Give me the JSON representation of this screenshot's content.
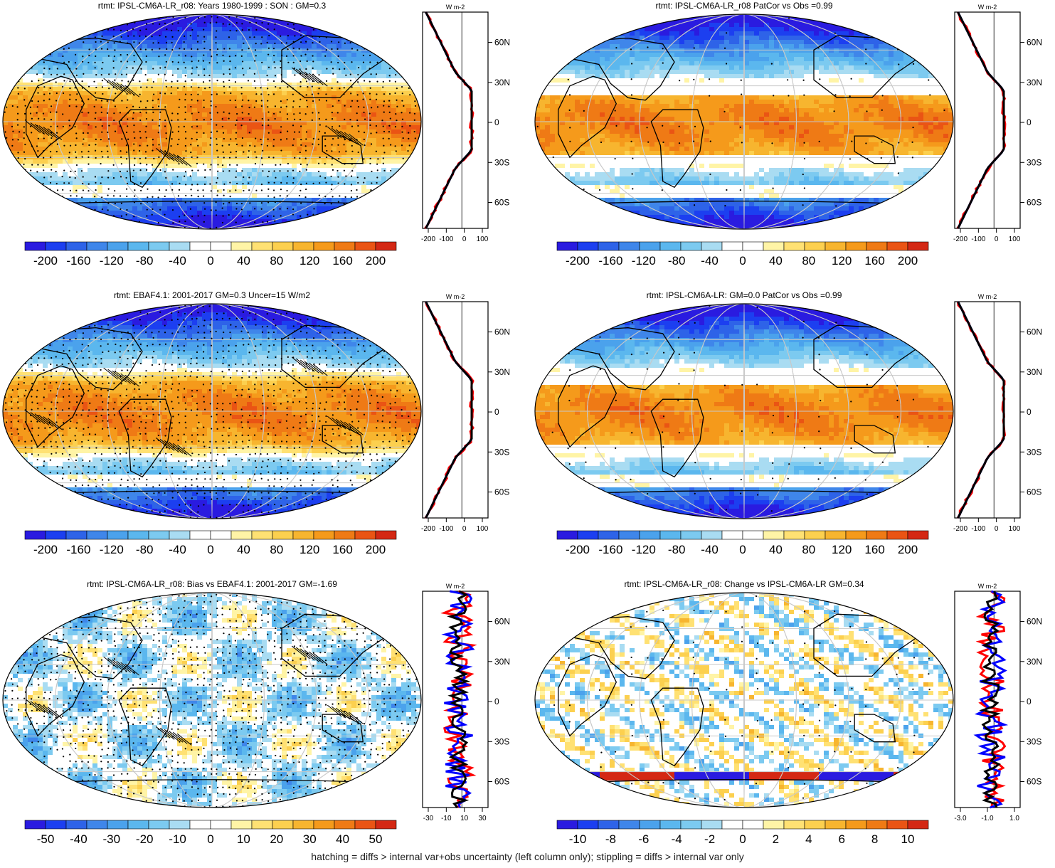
{
  "colors": {
    "neg": [
      "#2a1be0",
      "#1c3ff0",
      "#2e63e8",
      "#3f86ea",
      "#4ba2ec",
      "#5bb7ee",
      "#7ccaf0",
      "#a9dcf2"
    ],
    "zero": "#ffffff",
    "pos": [
      "#fff4a6",
      "#ffe173",
      "#fcd04f",
      "#f7b52f",
      "#f59a1b",
      "#ef7a15",
      "#ea5414",
      "#d42814"
    ],
    "continent": "#000000",
    "grid": "#c8c8c8",
    "profile_obs": "#0000ff",
    "profile_model": "#ff0000",
    "profile_mean": "#000000"
  },
  "panels": [
    {
      "id": "model-mean",
      "title": "rtmt: IPSL-CM6A-LR_r08: Years 1980-1999 : SON : GM=0.3",
      "colorbar_labels": [
        "-200",
        "-160",
        "-120",
        "-80",
        "-40",
        "0",
        "40",
        "80",
        "120",
        "160",
        "200"
      ],
      "profile_xticks": [
        "-200",
        "-100",
        "0",
        "100"
      ],
      "profile_yticks": [
        "60N",
        "30N",
        "0",
        "30S",
        "60S"
      ],
      "unit": "W m-2",
      "field": "mean",
      "stipple": "heavy",
      "hatch": true
    },
    {
      "id": "model-patcor",
      "title": "rtmt: IPSL-CM6A-LR_r08 PatCor vs Obs =0.99",
      "colorbar_labels": [
        "-200",
        "-160",
        "-120",
        "-80",
        "-40",
        "0",
        "40",
        "80",
        "120",
        "160",
        "200"
      ],
      "profile_xticks": [
        "-200",
        "-100",
        "0",
        "100"
      ],
      "profile_yticks": [
        "60N",
        "30N",
        "0",
        "30S",
        "60S"
      ],
      "unit": "W m-2",
      "field": "mean2",
      "stipple": "light",
      "hatch": false
    },
    {
      "id": "obs-mean",
      "title": "rtmt: EBAF4.1: 2001-2017 GM=0.3 Uncer=15 W/m2",
      "colorbar_labels": [
        "-200",
        "-160",
        "-120",
        "-80",
        "-40",
        "0",
        "40",
        "80",
        "120",
        "160",
        "200"
      ],
      "profile_xticks": [
        "-200",
        "-100",
        "0",
        "100"
      ],
      "profile_yticks": [
        "60N",
        "30N",
        "0",
        "30S",
        "60S"
      ],
      "unit": "W m-2",
      "field": "mean",
      "stipple": "heavy",
      "hatch": true
    },
    {
      "id": "ensemble-mean",
      "title": "rtmt: IPSL-CM6A-LR: GM=0.0 PatCor vs Obs =0.99",
      "colorbar_labels": [
        "-200",
        "-160",
        "-120",
        "-80",
        "-40",
        "0",
        "40",
        "80",
        "120",
        "160",
        "200"
      ],
      "profile_xticks": [
        "-200",
        "-100",
        "0",
        "100"
      ],
      "profile_yticks": [
        "60N",
        "30N",
        "0",
        "30S",
        "60S"
      ],
      "unit": "W m-2",
      "field": "mean2",
      "stipple": "light",
      "hatch": false
    },
    {
      "id": "bias",
      "title": "rtmt: IPSL-CM6A-LR_r08: Bias vs EBAF4.1: 2001-2017  GM=-1.69",
      "colorbar_labels": [
        "-50",
        "-40",
        "-30",
        "-20",
        "-10",
        "0",
        "10",
        "20",
        "30",
        "40",
        "50"
      ],
      "profile_xticks": [
        "-30",
        "-10",
        "10",
        "30"
      ],
      "profile_yticks": [
        "60N",
        "30N",
        "0",
        "30S",
        "60S"
      ],
      "unit": "W m-2",
      "field": "bias",
      "stipple": "heavy",
      "hatch": true
    },
    {
      "id": "change",
      "title": "rtmt: IPSL-CM6A-LR_r08: Change vs IPSL-CM6A-LR GM=0.34",
      "colorbar_labels": [
        "-10",
        "-8",
        "-6",
        "-4",
        "-2",
        "0",
        "2",
        "4",
        "6",
        "8",
        "10"
      ],
      "profile_xticks": [
        "-3.0",
        "-1.0",
        "1.0"
      ],
      "profile_yticks": [
        "60N",
        "30N",
        "0",
        "30S",
        "60S"
      ],
      "unit": "W m-2",
      "field": "change",
      "stipple": "light",
      "hatch": false
    }
  ],
  "chart_data": [
    {
      "type": "heatmap",
      "title": "rtmt: IPSL-CM6A-LR_r08: Years 1980-1999 : SON : GM=0.3",
      "colorbar_ticks": [
        -200,
        -160,
        -120,
        -80,
        -40,
        0,
        40,
        80,
        120,
        160,
        200
      ],
      "zonal_mean_profile": {
        "lat": [
          85,
          75,
          60,
          45,
          30,
          15,
          0,
          -15,
          -30,
          -45,
          -60,
          -75,
          -85
        ],
        "series": [
          {
            "values": [
              -170,
              -150,
              -110,
              -70,
              -10,
              55,
              65,
              70,
              55,
              0,
              -100,
              -90,
              -85
            ]
          },
          {
            "values": [
              -170,
              -150,
              -110,
              -65,
              -25,
              45,
              65,
              70,
              55,
              0,
              -100,
              -90,
              -85
            ]
          },
          {
            "values": [
              -170,
              -150,
              -110,
              -70,
              -15,
              50,
              65,
              70,
              55,
              0,
              -100,
              -90,
              -85
            ]
          }
        ]
      }
    },
    {
      "type": "heatmap",
      "title": "rtmt: IPSL-CM6A-LR_r08 PatCor vs Obs =0.99",
      "colorbar_ticks": [
        -200,
        -160,
        -120,
        -80,
        -40,
        0,
        40,
        80,
        120,
        160,
        200
      ]
    },
    {
      "type": "heatmap",
      "title": "rtmt: EBAF4.1: 2001-2017 GM=0.3 Uncer=15 W/m2",
      "colorbar_ticks": [
        -200,
        -160,
        -120,
        -80,
        -40,
        0,
        40,
        80,
        120,
        160,
        200
      ]
    },
    {
      "type": "heatmap",
      "title": "rtmt: IPSL-CM6A-LR: GM=0.0 PatCor vs Obs =0.99",
      "colorbar_ticks": [
        -200,
        -160,
        -120,
        -80,
        -40,
        0,
        40,
        80,
        120,
        160,
        200
      ]
    },
    {
      "type": "heatmap",
      "title": "rtmt: IPSL-CM6A-LR_r08: Bias vs EBAF4.1: 2001-2017  GM=-1.69",
      "colorbar_ticks": [
        -50,
        -40,
        -30,
        -20,
        -10,
        0,
        10,
        20,
        30,
        40,
        50
      ]
    },
    {
      "type": "heatmap",
      "title": "rtmt: IPSL-CM6A-LR_r08: Change vs IPSL-CM6A-LR GM=0.34",
      "colorbar_ticks": [
        -10,
        -8,
        -6,
        -4,
        -2,
        0,
        2,
        4,
        6,
        8,
        10
      ]
    }
  ],
  "footer": "hatching = diffs > internal var+obs uncertainty (left column only); stippling = diffs > internal var only"
}
